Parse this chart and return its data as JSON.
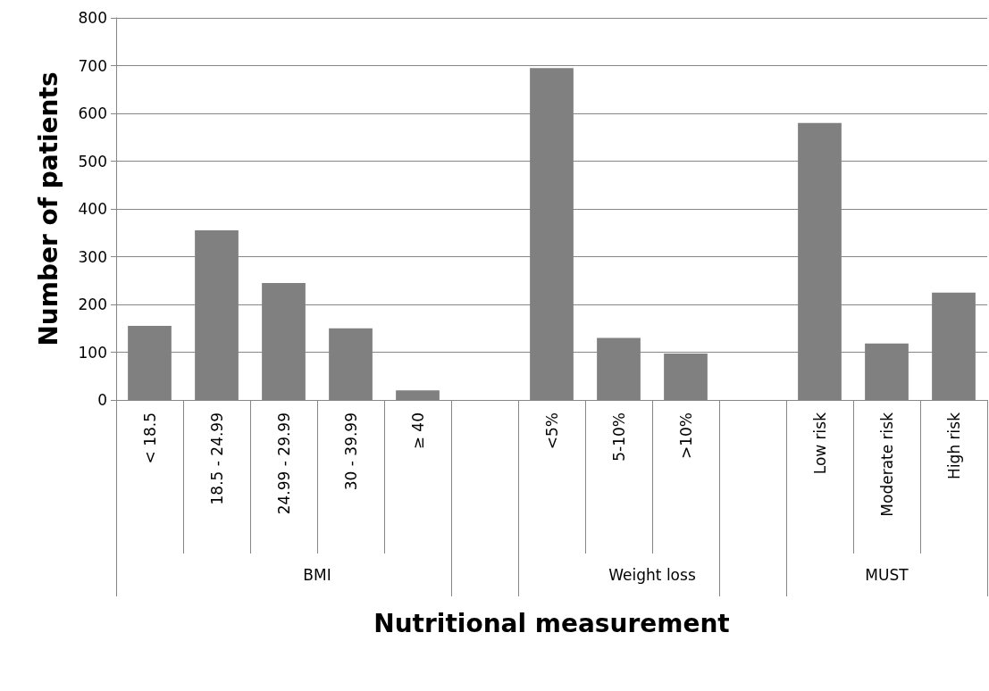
{
  "chart_data": {
    "type": "bar",
    "xlabel": "Nutritional measurement",
    "ylabel": "Number of patients",
    "categories": [
      "< 18.5",
      "18.5 - 24.99",
      "24.99 - 29.99",
      "30 - 39.99",
      "≥ 40",
      null,
      "<5%",
      "5-10%",
      ">10%",
      null,
      "Low risk",
      "Moderate risk",
      "High risk"
    ],
    "values": [
      155,
      355,
      245,
      150,
      20,
      null,
      695,
      130,
      97,
      null,
      580,
      118,
      225
    ],
    "color": "#808080",
    "annotations": [
      "BMI",
      "Weight loss",
      "MUST"
    ],
    "ylim": [
      0,
      800
    ],
    "yticks": [
      0,
      100,
      200,
      300,
      400,
      500,
      600,
      700,
      800
    ],
    "grid": "y"
  }
}
